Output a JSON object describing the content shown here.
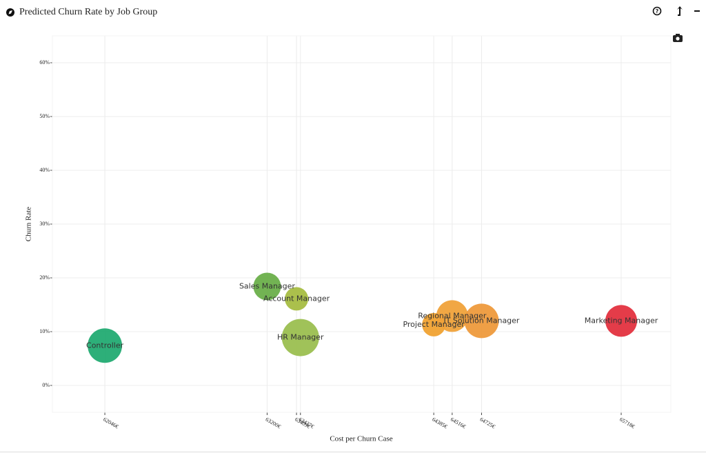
{
  "chart_data": {
    "type": "scatter",
    "title": "Predicted Churn Rate by Job Group",
    "x_label": "Cost per Churn Case",
    "y_label": "Churn Rate",
    "labels": [
      "Controller",
      "Sales Manager",
      "Account Manager",
      "HR Manager",
      "Project Manager",
      "Regional Manager",
      "IT Solution Manager",
      "Marketing Manager"
    ],
    "x": [
      62046,
      63200,
      63409,
      63437,
      64385,
      64516,
      64725,
      65718
    ],
    "values": [
      7.4,
      18.4,
      16.1,
      8.9,
      11.3,
      12.9,
      12.0,
      12.0
    ],
    "sizes": [
      50,
      40,
      34,
      54,
      34,
      46,
      50,
      46
    ],
    "colors": [
      "#22ab72",
      "#6aaf4a",
      "#a6bd42",
      "#9bbf50",
      "#f0a232",
      "#f0a23a",
      "#ee9a3c",
      "#e3323f"
    ],
    "xlim": [
      61673,
      66071
    ],
    "ylim": [
      -5,
      65
    ],
    "xticks": [
      {
        "value": 62046,
        "label": "62046€"
      },
      {
        "value": 63200,
        "label": "63200€"
      },
      {
        "value": 63409,
        "label": "63409€"
      },
      {
        "value": 63437,
        "label": "63437€"
      },
      {
        "value": 64385,
        "label": "64385€"
      },
      {
        "value": 64516,
        "label": "64516€"
      },
      {
        "value": 64725,
        "label": "64725€"
      },
      {
        "value": 65718,
        "label": "65718€"
      }
    ],
    "yticks": [
      {
        "value": 0,
        "label": "0%"
      },
      {
        "value": 10,
        "label": "10%"
      },
      {
        "value": 20,
        "label": "20%"
      },
      {
        "value": 30,
        "label": "30%"
      },
      {
        "value": 40,
        "label": "40%"
      },
      {
        "value": 50,
        "label": "50%"
      },
      {
        "value": 60,
        "label": "60%"
      }
    ],
    "grid": true
  }
}
